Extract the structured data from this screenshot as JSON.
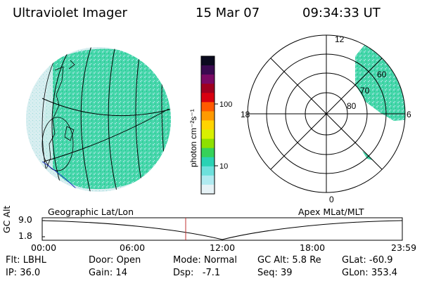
{
  "header": {
    "instrument": "Ultraviolet Imager",
    "date": "15 Mar 07",
    "time": "09:34:33 UT"
  },
  "colorbar": {
    "unit": "photon cm⁻²s⁻¹",
    "ticks": [
      "100",
      "10"
    ],
    "colors": [
      "#0a0a1e",
      "#3a0a50",
      "#7a0a64",
      "#a00020",
      "#d80010",
      "#ff5a00",
      "#ff9a00",
      "#ffd400",
      "#d8f000",
      "#8ee000",
      "#36d25a",
      "#2ad2b4",
      "#6ee0dc",
      "#b0eaf0",
      "#e6f2f6"
    ]
  },
  "left_map": {
    "caption": "Geographic Lat/Lon",
    "emission_color": "#36d2a0"
  },
  "right_polar": {
    "caption": "Apex MLat/MLT",
    "mlt_labels": {
      "top": "12",
      "left": "18",
      "right": "6",
      "bottom": "0"
    },
    "mlat_labels": [
      "60",
      "70",
      "80"
    ]
  },
  "altitude_plot": {
    "ylabel": "GC Alt",
    "yticks": [
      "9.0",
      "1.8"
    ],
    "xticks": [
      "00:00",
      "06:00",
      "12:00",
      "18:00",
      "23:59"
    ],
    "marker_color": "#c03030"
  },
  "status": {
    "flt_label": "Flt:",
    "flt": "LBHL",
    "ip_label": "IP:",
    "ip": "36.0",
    "door_label": "Door:",
    "door": "Open",
    "gain_label": "Gain:",
    "gain": "14",
    "mode_label": "Mode:",
    "mode": "Normal",
    "dsp_label": "Dsp:",
    "dsp": "-7.1",
    "gcalt_label": "GC Alt:",
    "gcalt": "5.8 Re",
    "seq_label": "Seq:",
    "seq": "39",
    "glat_label": "GLat:",
    "glat": "-60.9",
    "glon_label": "GLon:",
    "glon": "353.4"
  }
}
